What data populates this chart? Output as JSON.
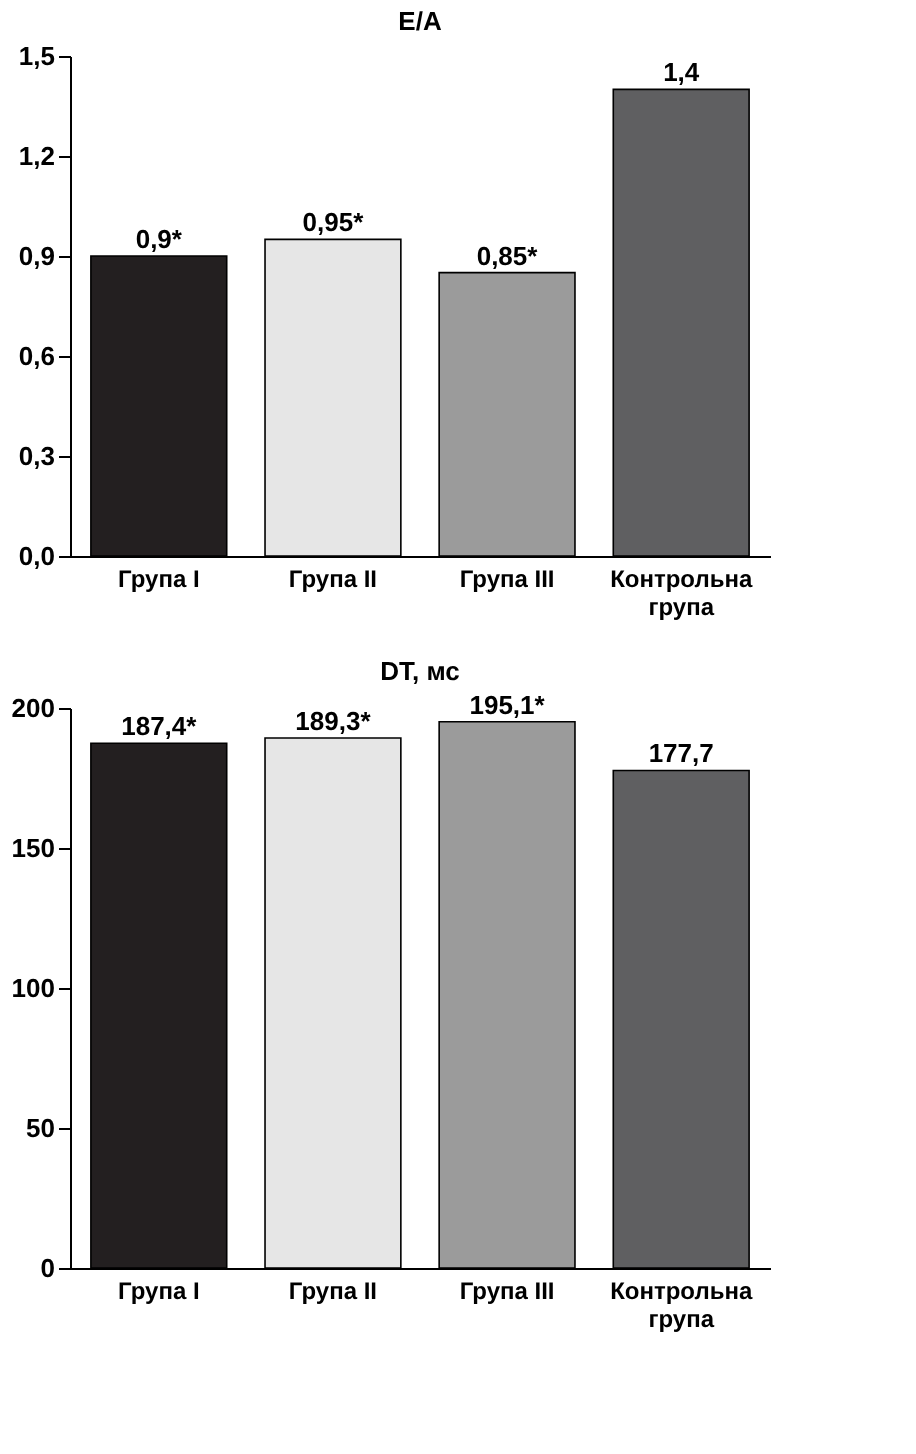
{
  "chart_data": [
    {
      "type": "bar",
      "title": "E/A",
      "categories": [
        "Група I",
        "Група II",
        "Група III",
        "Контрольна група"
      ],
      "values": [
        0.9,
        0.95,
        0.85,
        1.4
      ],
      "colors": [
        "#231f20",
        "#e6e6e6",
        "#9b9b9b",
        "#5f5f61"
      ],
      "value_labels": [
        "0,9*",
        "0,95*",
        "0,85*",
        "1,4"
      ],
      "ylim": [
        0,
        1.5
      ],
      "yticks": [
        {
          "value": 0,
          "label": "0,0"
        },
        {
          "value": 0.3,
          "label": "0,3"
        },
        {
          "value": 0.6,
          "label": "0,6"
        },
        {
          "value": 0.9,
          "label": "0,9"
        },
        {
          "value": 1.2,
          "label": "1,2"
        },
        {
          "value": 1.5,
          "label": "1,5"
        }
      ],
      "grid": false,
      "legend": false
    },
    {
      "type": "bar",
      "title": "DT, мс",
      "categories": [
        "Група I",
        "Група II",
        "Група III",
        "Контрольна група"
      ],
      "values": [
        187.4,
        189.3,
        195.1,
        177.7
      ],
      "colors": [
        "#231f20",
        "#e6e6e6",
        "#9b9b9b",
        "#5f5f61"
      ],
      "value_labels": [
        "187,4*",
        "189,3*",
        "195,1*",
        "177,7"
      ],
      "ylim": [
        0,
        200
      ],
      "yticks": [
        0,
        50,
        100,
        150,
        200
      ],
      "grid": false,
      "legend": false
    }
  ]
}
